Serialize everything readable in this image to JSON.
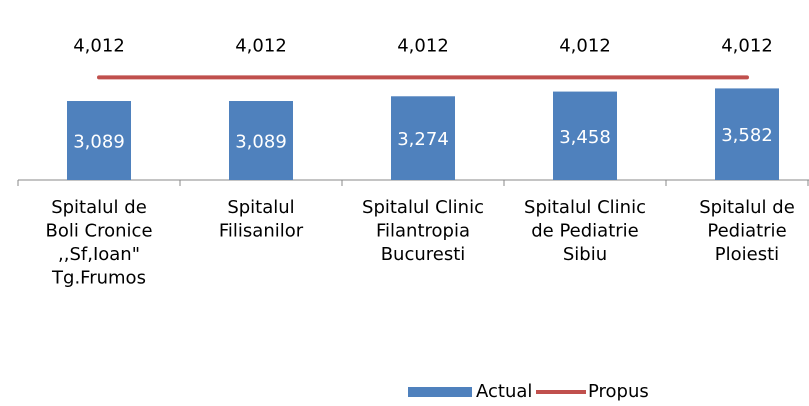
{
  "chart_data": {
    "type": "bar",
    "categories": [
      "Spitalul de\nBoli Cronice\n,,Sf,Ioan\"\nTg.Frumos",
      "Spitalul\nFilisanilor",
      "Spitalul Clinic\nFilantropia\nBucuresti",
      "Spitalul Clinic\nde Pediatrie\nSibiu",
      "Spitalul de\nPediatrie\nPloiesti"
    ],
    "series": [
      {
        "name": "Actual",
        "type": "bar",
        "color": "#4f81bd",
        "values": [
          3089,
          3089,
          3274,
          3458,
          3582
        ],
        "value_labels": [
          "3,089",
          "3,089",
          "3,274",
          "3,458",
          "3,582"
        ]
      },
      {
        "name": "Propus",
        "type": "line",
        "color": "#c0504d",
        "values": [
          4012,
          4012,
          4012,
          4012,
          4012
        ],
        "value_labels": [
          "4,012",
          "4,012",
          "4,012",
          "4,012",
          "4,012"
        ]
      }
    ],
    "ylim": [
      0,
      7000
    ]
  }
}
